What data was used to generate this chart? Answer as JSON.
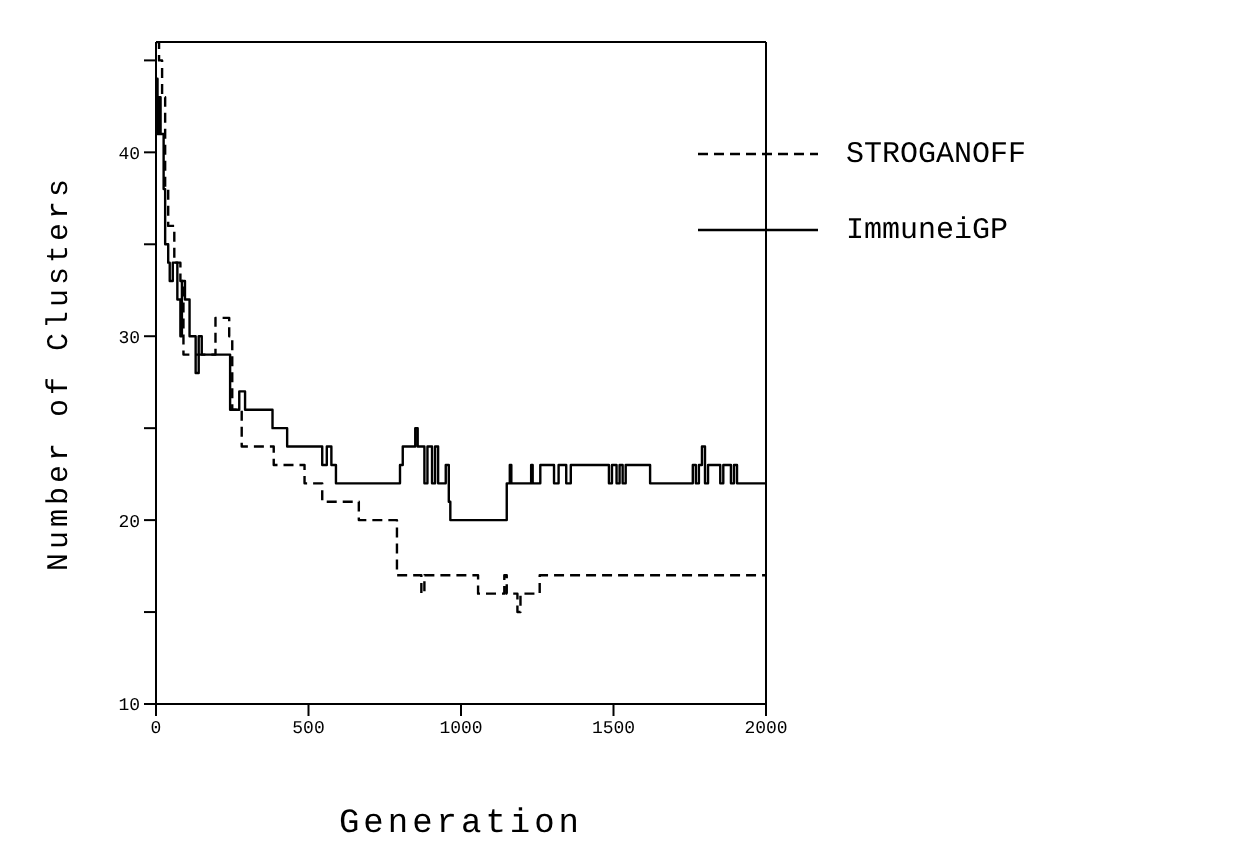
{
  "chart_data": {
    "type": "step",
    "xlabel": "Generation",
    "ylabel": "Number of Clusters",
    "xlim": [
      0,
      2000
    ],
    "xticks": [
      0,
      500,
      1000,
      1500,
      2000
    ],
    "ylim": [
      10,
      46
    ],
    "yticks": [
      10,
      {
        "value": 15,
        "label": null
      },
      20,
      {
        "value": 25,
        "label": null
      },
      30,
      {
        "value": 35,
        "label": null
      },
      40,
      {
        "value": 45,
        "label": null
      }
    ],
    "legend": "top right",
    "marker": "none",
    "series": [
      {
        "name": "STROGANOFF",
        "color": "#000000",
        "line_style": "dashed",
        "x": [
          0,
          10,
          20,
          30,
          40,
          60,
          80,
          90,
          142,
          195,
          240,
          250,
          281,
          386,
          487,
          545,
          665,
          790,
          870,
          880,
          1056,
          1142,
          1150,
          1160,
          1185,
          1195,
          1258,
          2000
        ],
        "values": [
          46,
          45,
          43,
          38,
          36,
          34,
          33,
          29,
          29,
          31,
          30,
          26,
          24,
          23,
          22,
          21,
          20,
          17,
          16,
          17,
          16,
          17,
          16,
          16,
          15,
          16,
          17,
          17
        ]
      },
      {
        "name": "ImmuneiGP",
        "color": "#000000",
        "line_style": "solid",
        "x": [
          0,
          5,
          10,
          15,
          25,
          30,
          40,
          45,
          55,
          70,
          80,
          85,
          95,
          110,
          130,
          140,
          150,
          168,
          243,
          273,
          292,
          382,
          430,
          545,
          560,
          575,
          590,
          800,
          809,
          820,
          850,
          858,
          880,
          890,
          905,
          915,
          925,
          950,
          960,
          965,
          1150,
          1160,
          1165,
          1230,
          1235,
          1260,
          1305,
          1320,
          1345,
          1360,
          1485,
          1495,
          1510,
          1520,
          1530,
          1540,
          1620,
          1760,
          1770,
          1780,
          1790,
          1800,
          1810,
          1850,
          1860,
          1885,
          1895,
          1905,
          2000
        ],
        "values": [
          44,
          41,
          43,
          41,
          38,
          35,
          34,
          33,
          34,
          32,
          30,
          33,
          32,
          30,
          28,
          30,
          29,
          29,
          26,
          27,
          26,
          25,
          24,
          23,
          24,
          23,
          22,
          23,
          24,
          24,
          25,
          24,
          22,
          24,
          22,
          24,
          22,
          23,
          21,
          20,
          22,
          23,
          22,
          23,
          22,
          23,
          22,
          23,
          22,
          23,
          22,
          23,
          22,
          23,
          22,
          23,
          22,
          23,
          22,
          23,
          24,
          22,
          23,
          22,
          23,
          22,
          23,
          22,
          22
        ]
      }
    ]
  }
}
